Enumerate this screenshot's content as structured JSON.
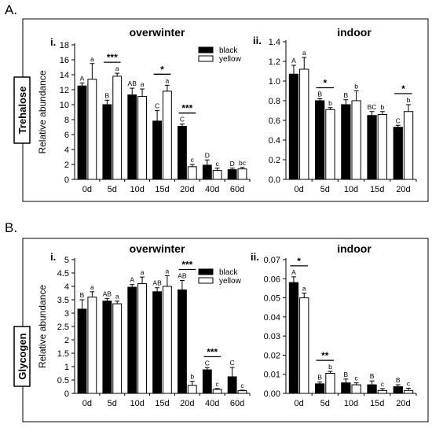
{
  "sections": [
    {
      "label": "A.",
      "row_label": "Trehalose"
    },
    {
      "label": "B.",
      "row_label": "Glycogen"
    }
  ],
  "legend": {
    "black_label": "black",
    "yellow_label": "yellow",
    "black_color": "#000000",
    "yellow_color": "#ffffff"
  },
  "chart_data": [
    {
      "type": "bar",
      "id": "A-i",
      "panel_label": "i.",
      "title": "overwinter",
      "ylabel": "Relative abundance",
      "xlabel": "",
      "ylim": [
        0,
        18
      ],
      "yticks": [
        0,
        2,
        4,
        6,
        8,
        10,
        12,
        14,
        16,
        18
      ],
      "categories": [
        "0d",
        "5d",
        "10d",
        "15d",
        "20d",
        "40d",
        "60d"
      ],
      "series": [
        {
          "name": "black",
          "color": "#000000",
          "values": [
            12.5,
            10.0,
            11.3,
            7.8,
            7.1,
            1.9,
            1.3
          ],
          "errors": [
            0.4,
            0.6,
            0.9,
            1.4,
            0.3,
            0.7,
            0.2
          ],
          "labels": [
            "A",
            "B",
            "AB",
            "C",
            "C",
            "D",
            "D"
          ]
        },
        {
          "name": "yellow",
          "color": "#ffffff",
          "values": [
            13.4,
            13.8,
            11.1,
            11.8,
            1.7,
            1.2,
            1.4
          ],
          "errors": [
            2.1,
            0.4,
            1.0,
            0.8,
            0.3,
            0.3,
            0.2
          ],
          "labels": [
            "a",
            "a",
            "a",
            "a",
            "c",
            "c",
            "bc"
          ]
        }
      ],
      "significance": [
        {
          "category": "5d",
          "text": "***"
        },
        {
          "category": "15d",
          "text": "*"
        },
        {
          "category": "20d",
          "text": "***"
        }
      ]
    },
    {
      "type": "bar",
      "id": "A-ii",
      "panel_label": "ii.",
      "title": "indoor",
      "ylabel": "",
      "xlabel": "",
      "ylim": [
        0,
        1.4
      ],
      "yticks": [
        0,
        0.2,
        0.4,
        0.6,
        0.8,
        1.0,
        1.2,
        1.4
      ],
      "ytick_labels": [
        "0.0",
        "0.2",
        "0.4",
        "0.6",
        "0.8",
        "1.0",
        "1.2",
        "1.4"
      ],
      "categories": [
        "0d",
        "5d",
        "10d",
        "15d",
        "20d"
      ],
      "series": [
        {
          "name": "black",
          "color": "#000000",
          "values": [
            1.07,
            0.8,
            0.76,
            0.65,
            0.53
          ],
          "errors": [
            0.09,
            0.02,
            0.05,
            0.04,
            0.02
          ],
          "labels": [
            "A",
            "B",
            "B",
            "BC",
            "C"
          ]
        },
        {
          "name": "yellow",
          "color": "#ffffff",
          "values": [
            1.12,
            0.71,
            0.8,
            0.66,
            0.69
          ],
          "errors": [
            0.12,
            0.02,
            0.1,
            0.03,
            0.07
          ],
          "labels": [
            "a",
            "b",
            "b",
            "b",
            "b"
          ]
        }
      ],
      "significance": [
        {
          "category": "5d",
          "text": "*"
        },
        {
          "category": "20d",
          "text": "*"
        }
      ]
    },
    {
      "type": "bar",
      "id": "B-i",
      "panel_label": "i.",
      "title": "overwinter",
      "ylabel": "Relative abundance",
      "xlabel": "",
      "ylim": [
        0,
        5
      ],
      "yticks": [
        0,
        0.5,
        1,
        1.5,
        2,
        2.5,
        3,
        3.5,
        4,
        4.5,
        5
      ],
      "categories": [
        "0d",
        "5d",
        "10d",
        "15d",
        "20d",
        "40d",
        "60d"
      ],
      "series": [
        {
          "name": "black",
          "color": "#000000",
          "values": [
            3.15,
            3.45,
            3.97,
            3.8,
            3.87,
            0.88,
            0.62
          ],
          "errors": [
            0.35,
            0.1,
            0.1,
            0.15,
            0.35,
            0.08,
            0.35
          ],
          "labels": [
            "B",
            "AB",
            "A",
            "AB",
            "AB",
            "C",
            "C"
          ]
        },
        {
          "name": "yellow",
          "color": "#ffffff",
          "values": [
            3.6,
            3.35,
            4.1,
            4.0,
            0.3,
            0.15,
            0.1
          ],
          "errors": [
            0.2,
            0.1,
            0.25,
            0.4,
            0.15,
            0.03,
            0.02
          ],
          "labels": [
            "a",
            "a",
            "a",
            "a",
            "b",
            "c",
            "c"
          ]
        }
      ],
      "significance": [
        {
          "category": "20d",
          "text": "***"
        },
        {
          "category": "40d",
          "text": "***"
        }
      ]
    },
    {
      "type": "bar",
      "id": "B-ii",
      "panel_label": "ii.",
      "title": "indoor",
      "ylabel": "",
      "xlabel": "",
      "ylim": [
        0,
        0.07
      ],
      "yticks": [
        0,
        0.01,
        0.02,
        0.03,
        0.04,
        0.05,
        0.06,
        0.07
      ],
      "ytick_labels": [
        "0.00",
        "0.01",
        "0.02",
        "0.03",
        "0.04",
        "0.05",
        "0.06",
        "0.07"
      ],
      "categories": [
        "0d",
        "5d",
        "10d",
        "15d",
        "20d"
      ],
      "series": [
        {
          "name": "black",
          "color": "#000000",
          "values": [
            0.058,
            0.005,
            0.0055,
            0.0045,
            0.0035
          ],
          "errors": [
            0.003,
            0.001,
            0.002,
            0.002,
            0.001
          ],
          "labels": [
            "A",
            "B",
            "B",
            "B",
            "B"
          ]
        },
        {
          "name": "yellow",
          "color": "#ffffff",
          "values": [
            0.05,
            0.0105,
            0.0045,
            0.0015,
            0.0015
          ],
          "errors": [
            0.0025,
            0.001,
            0.001,
            0.001,
            0.0012
          ],
          "labels": [
            "a",
            "b",
            "c",
            "c",
            "c"
          ]
        }
      ],
      "significance": [
        {
          "category": "0d",
          "text": "*"
        },
        {
          "category": "5d",
          "text": "**"
        }
      ]
    }
  ]
}
